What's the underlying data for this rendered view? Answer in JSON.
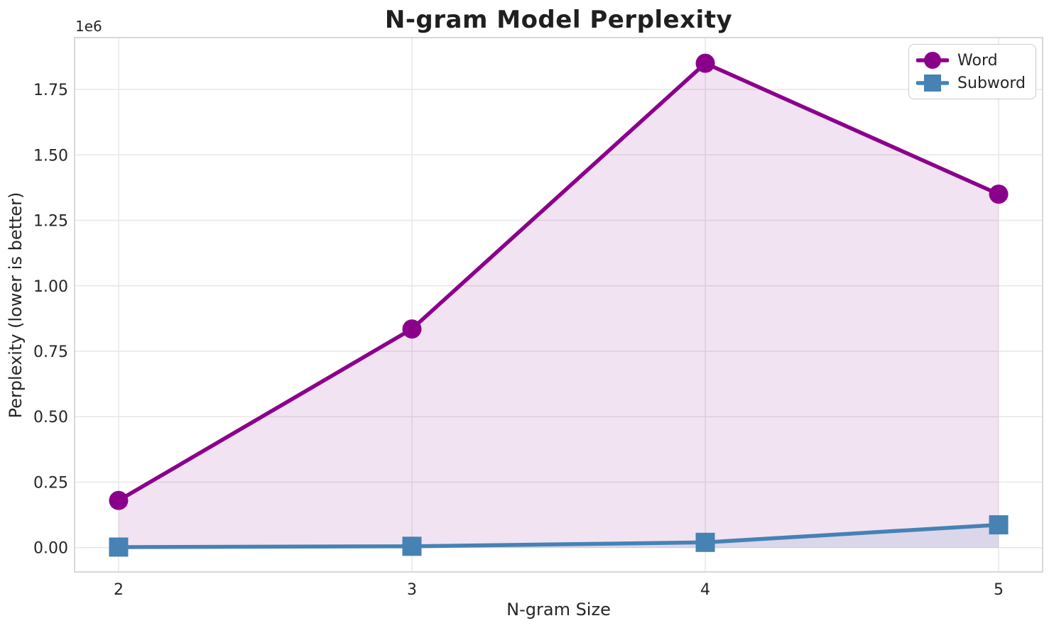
{
  "chart_data": {
    "type": "line",
    "title": "N-gram Model Perplexity",
    "xlabel": "N-gram Size",
    "ylabel": "Perplexity (lower is better)",
    "y_offset_text": "1e6",
    "x": [
      2,
      3,
      4,
      5
    ],
    "series": [
      {
        "name": "Word",
        "marker": "circle",
        "color": "#8B008B",
        "fill": "rgba(139,0,139,0.11)",
        "values": [
          180000,
          835000,
          1850000,
          1350000
        ]
      },
      {
        "name": "Subword",
        "marker": "square",
        "color": "#4682B4",
        "fill": "rgba(70,130,180,0.13)",
        "values": [
          2000,
          5000,
          20000,
          87000
        ]
      }
    ],
    "xlim": [
      1.85,
      5.15
    ],
    "ylim": [
      -93000,
      1948000
    ],
    "xticks": [
      2,
      3,
      4,
      5
    ],
    "xtick_labels": [
      "2",
      "3",
      "4",
      "5"
    ],
    "yticks": [
      0,
      250000,
      500000,
      750000,
      1000000,
      1250000,
      1500000,
      1750000
    ],
    "ytick_labels": [
      "0.00",
      "0.25",
      "0.50",
      "0.75",
      "1.00",
      "1.25",
      "1.50",
      "1.75"
    ],
    "grid": true,
    "fill_to_zero": true,
    "legend_position": "upper right"
  },
  "theme": {
    "background": "#ffffff",
    "text": "#262626",
    "grid": "#e7e7e7",
    "spine": "#cccccc",
    "legend_border": "#cccccc"
  }
}
